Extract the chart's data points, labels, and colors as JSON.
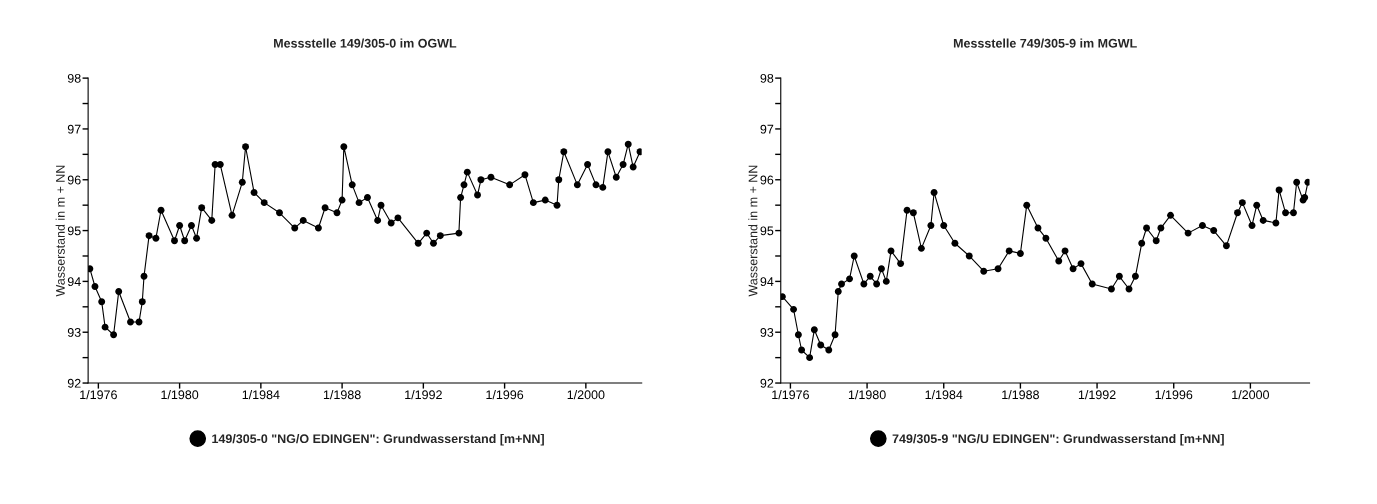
{
  "chart_data": [
    {
      "type": "line",
      "title": "Messstelle 149/305-0 im OGWL",
      "ylabel": "Wasserstand in m + NN",
      "marker": "circle",
      "line_style": "solid",
      "grid": false,
      "legend": "bottom",
      "xlim": [
        "1975-07",
        "2002-10"
      ],
      "xticks": [
        {
          "value": "1976-01",
          "label": "1/1976"
        },
        {
          "value": "1980-01",
          "label": "1/1980"
        },
        {
          "value": "1984-01",
          "label": "1/1984"
        },
        {
          "value": "1988-01",
          "label": "1/1988"
        },
        {
          "value": "1992-01",
          "label": "1/1992"
        },
        {
          "value": "1996-01",
          "label": "1/1996"
        },
        {
          "value": "2000-01",
          "label": "1/2000"
        }
      ],
      "ylim": [
        92,
        98
      ],
      "yticks": [
        92,
        {
          "value": 92.5,
          "label": null
        },
        93,
        {
          "value": 93.5,
          "label": null
        },
        94,
        {
          "value": 94.5,
          "label": null
        },
        95,
        {
          "value": 95.5,
          "label": null
        },
        96,
        {
          "value": 96.5,
          "label": null
        },
        97,
        {
          "value": 97.5,
          "label": null
        },
        98
      ],
      "series": [
        {
          "name": "149/305-0 \"NG/O EDINGEN\": Grundwasserstand [m+NN]",
          "color": "#000000",
          "x": [
            "1975-08",
            "1975-11",
            "1976-03",
            "1976-05",
            "1976-10",
            "1977-01",
            "1977-08",
            "1978-01",
            "1978-03",
            "1978-04",
            "1978-07",
            "1978-11",
            "1979-02",
            "1979-10",
            "1980-01",
            "1980-04",
            "1980-08",
            "1980-11",
            "1981-02",
            "1981-08",
            "1981-10",
            "1982-01",
            "1982-08",
            "1983-02",
            "1983-04",
            "1983-09",
            "1984-03",
            "1984-12",
            "1985-09",
            "1986-02",
            "1986-11",
            "1987-03",
            "1987-10",
            "1988-01",
            "1988-02",
            "1988-07",
            "1988-11",
            "1989-04",
            "1989-10",
            "1989-12",
            "1990-06",
            "1990-10",
            "1991-10",
            "1992-03",
            "1992-07",
            "1992-11",
            "1993-10",
            "1993-11",
            "1994-01",
            "1994-03",
            "1994-09",
            "1994-11",
            "1995-05",
            "1996-04",
            "1997-01",
            "1997-06",
            "1998-01",
            "1998-08",
            "1998-09",
            "1998-12",
            "1999-08",
            "2000-02",
            "2000-07",
            "2000-11",
            "2001-02",
            "2001-07",
            "2001-11",
            "2002-02",
            "2002-05",
            "2002-09"
          ],
          "values": [
            94.25,
            93.9,
            93.6,
            93.1,
            92.95,
            93.8,
            93.2,
            93.2,
            93.6,
            94.1,
            94.9,
            94.85,
            95.4,
            94.8,
            95.1,
            94.8,
            95.1,
            94.85,
            95.45,
            95.2,
            96.3,
            96.3,
            95.3,
            95.95,
            96.65,
            95.75,
            95.55,
            95.35,
            95.05,
            95.2,
            95.05,
            95.45,
            95.35,
            95.6,
            96.65,
            95.9,
            95.55,
            95.65,
            95.2,
            95.5,
            95.15,
            95.25,
            94.75,
            94.95,
            94.75,
            94.9,
            94.95,
            95.65,
            95.9,
            96.15,
            95.7,
            96.0,
            96.05,
            95.9,
            96.1,
            95.55,
            95.6,
            95.5,
            96.0,
            96.55,
            95.9,
            96.3,
            95.9,
            95.85,
            96.55,
            96.05,
            96.3,
            96.7,
            96.25,
            96.55
          ]
        }
      ]
    },
    {
      "type": "line",
      "title": "Messstelle 749/305-9 im MGWL",
      "ylabel": "Wasserstand in m + NN",
      "marker": "circle",
      "line_style": "solid",
      "grid": false,
      "legend": "bottom",
      "xlim": [
        "1975-07",
        "2003-02"
      ],
      "xticks": [
        {
          "value": "1976-01",
          "label": "1/1976"
        },
        {
          "value": "1980-01",
          "label": "1/1980"
        },
        {
          "value": "1984-01",
          "label": "1/1984"
        },
        {
          "value": "1988-01",
          "label": "1/1988"
        },
        {
          "value": "1992-01",
          "label": "1/1992"
        },
        {
          "value": "1996-01",
          "label": "1/1996"
        },
        {
          "value": "2000-01",
          "label": "1/2000"
        }
      ],
      "ylim": [
        92,
        98
      ],
      "yticks": [
        92,
        {
          "value": 92.5,
          "label": null
        },
        93,
        {
          "value": 93.5,
          "label": null
        },
        94,
        {
          "value": 94.5,
          "label": null
        },
        95,
        {
          "value": 95.5,
          "label": null
        },
        96,
        {
          "value": 96.5,
          "label": null
        },
        97,
        {
          "value": 97.5,
          "label": null
        },
        98
      ],
      "series": [
        {
          "name": "749/305-9 \"NG/U EDINGEN\": Grundwasserstand [m+NN]",
          "color": "#000000",
          "x": [
            "1975-08",
            "1976-03",
            "1976-06",
            "1976-08",
            "1977-01",
            "1977-04",
            "1977-08",
            "1978-01",
            "1978-05",
            "1978-07",
            "1978-09",
            "1979-02",
            "1979-05",
            "1979-11",
            "1980-03",
            "1980-07",
            "1980-10",
            "1981-01",
            "1981-04",
            "1981-10",
            "1982-02",
            "1982-06",
            "1982-11",
            "1983-05",
            "1983-07",
            "1984-01",
            "1984-08",
            "1985-05",
            "1986-02",
            "1986-11",
            "1987-06",
            "1988-01",
            "1988-05",
            "1988-12",
            "1989-05",
            "1990-01",
            "1990-05",
            "1990-10",
            "1991-03",
            "1991-10",
            "1992-10",
            "1993-03",
            "1993-09",
            "1994-01",
            "1994-05",
            "1994-08",
            "1995-02",
            "1995-05",
            "1995-11",
            "1996-10",
            "1997-07",
            "1998-02",
            "1998-10",
            "1999-05",
            "1999-08",
            "2000-02",
            "2000-05",
            "2000-09",
            "2001-05",
            "2001-07",
            "2001-11",
            "2002-04",
            "2002-06",
            "2002-10",
            "2002-11",
            "2003-01"
          ],
          "values": [
            93.7,
            93.45,
            92.95,
            92.65,
            92.5,
            93.05,
            92.75,
            92.65,
            92.95,
            93.8,
            93.95,
            94.05,
            94.5,
            93.95,
            94.1,
            93.95,
            94.25,
            94.0,
            94.6,
            94.35,
            95.4,
            95.35,
            94.65,
            95.1,
            95.75,
            95.1,
            94.75,
            94.5,
            94.2,
            94.25,
            94.6,
            94.55,
            95.5,
            95.05,
            94.85,
            94.4,
            94.6,
            94.25,
            94.35,
            93.95,
            93.85,
            94.1,
            93.85,
            94.1,
            94.75,
            95.05,
            94.8,
            95.05,
            95.3,
            94.95,
            95.1,
            95.0,
            94.7,
            95.35,
            95.55,
            95.1,
            95.5,
            95.2,
            95.15,
            95.8,
            95.35,
            95.35,
            95.95,
            95.6,
            95.65,
            95.95
          ]
        }
      ]
    }
  ]
}
